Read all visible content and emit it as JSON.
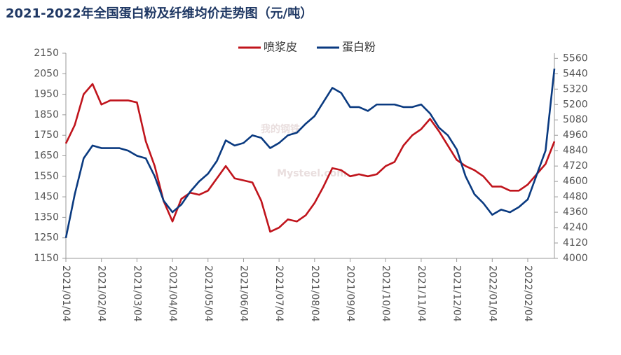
{
  "chart_data": {
    "type": "line",
    "title": "2021-2022年全国蛋白粉及纤维均价走势图（元/吨）",
    "watermark": [
      "我的钢铁",
      "Mysteel.com"
    ],
    "categories": [
      "2021/01/04",
      null,
      null,
      null,
      "2021/02/04",
      null,
      null,
      null,
      "2021/03/04",
      null,
      null,
      null,
      "2021/04/04",
      null,
      null,
      null,
      "2021/05/04",
      null,
      null,
      null,
      "2021/06/04",
      null,
      null,
      null,
      "2021/07/04",
      null,
      null,
      null,
      "2021/08/04",
      null,
      null,
      null,
      "2021/09/04",
      null,
      null,
      null,
      "2021/10/04",
      null,
      null,
      null,
      "2021/11/04",
      null,
      null,
      null,
      "2021/12/04",
      null,
      null,
      null,
      "2022/01/04",
      null,
      null,
      null,
      "2022/02/04",
      null,
      null,
      null
    ],
    "series": [
      {
        "name": "喷浆皮",
        "color": "#c0141c",
        "axis": "y",
        "values": [
          1710,
          1800,
          1950,
          2000,
          1900,
          1920,
          1920,
          1920,
          1910,
          1720,
          1600,
          1430,
          1330,
          1440,
          1470,
          1460,
          1480,
          1540,
          1600,
          1540,
          1530,
          1520,
          1430,
          1280,
          1300,
          1340,
          1330,
          1360,
          1420,
          1500,
          1590,
          1580,
          1550,
          1560,
          1550,
          1560,
          1600,
          1620,
          1700,
          1750,
          1780,
          1830,
          1770,
          1700,
          1630,
          1600,
          1580,
          1550,
          1500,
          1500,
          1480,
          1480,
          1510,
          1560,
          1610,
          1720
        ]
      },
      {
        "name": "蛋白粉",
        "color": "#0a3a80",
        "axis": "y2",
        "values": [
          4160,
          4500,
          4780,
          4880,
          4860,
          4860,
          4860,
          4840,
          4800,
          4780,
          4640,
          4450,
          4360,
          4420,
          4520,
          4600,
          4660,
          4760,
          4920,
          4880,
          4900,
          4960,
          4940,
          4860,
          4900,
          4960,
          4980,
          5050,
          5110,
          5220,
          5330,
          5290,
          5180,
          5180,
          5150,
          5200,
          5200,
          5200,
          5180,
          5180,
          5200,
          5130,
          5020,
          4960,
          4850,
          4640,
          4500,
          4430,
          4340,
          4380,
          4360,
          4400,
          4460,
          4650,
          4840,
          5480
        ]
      }
    ],
    "ylim": [
      1150,
      2150
    ],
    "yticks": [
      1150,
      1250,
      1350,
      1450,
      1550,
      1650,
      1750,
      1850,
      1950,
      2050,
      2150
    ],
    "y2lim": [
      4000,
      5600
    ],
    "y2ticks": [
      4000,
      4120,
      4240,
      4360,
      4480,
      4600,
      4720,
      4840,
      4960,
      5080,
      5200,
      5320,
      5440,
      5560
    ],
    "legend": "top"
  }
}
